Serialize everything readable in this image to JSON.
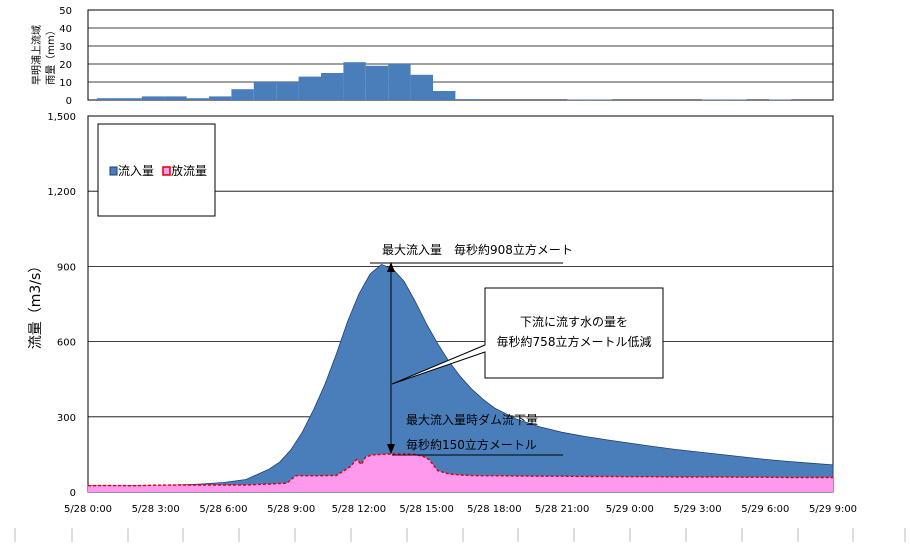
{
  "chart_data": [
    {
      "type": "bar",
      "ylabel_lines": [
        "早明浦上流域",
        "雨量（mm）"
      ],
      "ylim": [
        0,
        50
      ],
      "yticks": [
        0,
        10,
        20,
        30,
        40,
        50
      ],
      "grid": true,
      "color": "#4a7ebb",
      "x": [
        1,
        2,
        3,
        4,
        5,
        6,
        7,
        8,
        9,
        10,
        11,
        12,
        13,
        14,
        15,
        16,
        17,
        18,
        19,
        20,
        21,
        22,
        23,
        24,
        25,
        26,
        27,
        28,
        29,
        30,
        31,
        32,
        33,
        34
      ],
      "values": [
        1,
        1,
        2,
        2,
        1,
        2,
        6,
        10,
        10,
        13,
        15,
        21,
        19,
        20,
        14,
        5,
        0.5,
        0,
        0,
        0,
        0,
        0.3,
        0.3,
        0,
        0,
        0,
        0,
        0.3,
        0.3,
        0,
        0.3,
        0,
        0,
        0
      ]
    },
    {
      "type": "area",
      "ylabel": "流量（m3/s）",
      "ylim": [
        0,
        1500
      ],
      "yticks": [
        0,
        300,
        600,
        900,
        1200,
        1500
      ],
      "ytick_labels": [
        "0",
        "300",
        "600",
        "900",
        "1,200",
        "1,500"
      ],
      "xlim": [
        0,
        33
      ],
      "xticks": [
        0,
        3,
        6,
        9,
        12,
        15,
        18,
        21,
        24,
        27,
        30,
        33
      ],
      "xtick_labels": [
        "5/28 0:00",
        "5/28 3:00",
        "5/28 6:00",
        "5/28 9:00",
        "5/28 12:00",
        "5/28 15:00",
        "5/28 18:00",
        "5/28 21:00",
        "5/29 0:00",
        "5/29 3:00",
        "5/29 6:00",
        "5/29 9:00"
      ],
      "grid": true,
      "legend_position": "top-left",
      "series": [
        {
          "name": "流入量",
          "color": "#4a7ebb",
          "x": [
            0,
            1,
            2,
            3,
            4,
            5,
            6,
            7,
            8,
            8.5,
            9,
            9.5,
            10,
            10.5,
            11,
            11.5,
            12,
            12.5,
            13,
            13.5,
            14,
            14.5,
            15,
            15.5,
            16,
            16.5,
            17,
            17.5,
            18,
            19,
            20,
            21,
            22,
            23,
            24,
            25,
            26,
            27,
            28,
            29,
            30,
            31,
            32,
            33
          ],
          "values": [
            25,
            25,
            25,
            25,
            28,
            32,
            38,
            50,
            90,
            120,
            170,
            240,
            330,
            430,
            550,
            680,
            790,
            870,
            908,
            890,
            840,
            760,
            670,
            590,
            520,
            460,
            410,
            370,
            335,
            290,
            260,
            238,
            222,
            208,
            195,
            182,
            170,
            160,
            150,
            140,
            130,
            122,
            115,
            108
          ]
        },
        {
          "name": "放流量",
          "color": "#ff99ee",
          "line_color": "#dd0000",
          "x": [
            0,
            1,
            2,
            3,
            4,
            5,
            6,
            7,
            8,
            8.8,
            9.2,
            10,
            11,
            11.6,
            11.9,
            12.1,
            12.3,
            12.6,
            13,
            13.5,
            14,
            14.5,
            14.9,
            15.1,
            15.5,
            16,
            16.5,
            17,
            17.5,
            18,
            19,
            20,
            21,
            22,
            23,
            24,
            25,
            26,
            27,
            28,
            29,
            30,
            31,
            32,
            33
          ],
          "values": [
            25,
            26,
            25,
            27,
            28,
            28,
            28,
            28,
            32,
            35,
            65,
            65,
            66,
            100,
            130,
            110,
            140,
            148,
            150,
            152,
            152,
            150,
            140,
            130,
            85,
            72,
            68,
            66,
            65,
            65,
            64,
            63,
            63,
            62,
            62,
            61,
            61,
            60,
            60,
            60,
            59,
            59,
            58,
            58,
            58
          ]
        }
      ],
      "annotations": {
        "max_inflow": "最大流入量　毎秒約908立方メート",
        "reduction_line1": "下流に流す水の量を",
        "reduction_line2": "毎秒約758立方メートル低減",
        "dam_outflow_line1": "最大流入量時ダム流下量",
        "dam_outflow_line2": "毎秒約150立方メートル"
      }
    }
  ]
}
